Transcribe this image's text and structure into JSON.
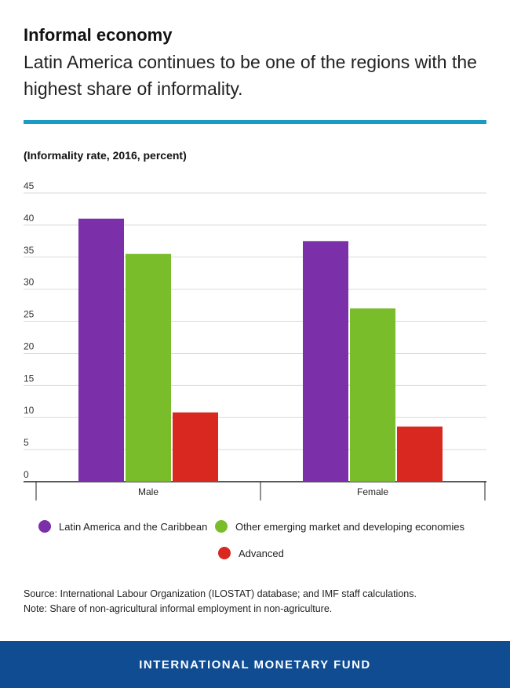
{
  "header": {
    "title": "Informal economy",
    "subtitle": "Latin America continues to be one of the regions with the highest share of informality."
  },
  "colors": {
    "rule": "#1a9bc6",
    "footer_bg": "#0f4c92"
  },
  "chart_data": {
    "type": "bar",
    "units_label": "(Informality rate, 2016, percent)",
    "categories": [
      "Male",
      "Female"
    ],
    "ylim": [
      0,
      45
    ],
    "yticks": [
      "0",
      "5",
      "10",
      "15",
      "20",
      "25",
      "30",
      "35",
      "40",
      "45"
    ],
    "grid": true,
    "legend_position": "bottom",
    "series": [
      {
        "name": "Latin America and the Caribbean",
        "color": "#7b2fa8",
        "values": [
          41,
          37.5
        ]
      },
      {
        "name": "Other emerging market and developing economies",
        "color": "#7abd2a",
        "values": [
          35.5,
          27
        ]
      },
      {
        "name": "Advanced",
        "color": "#d8281f",
        "values": [
          10.8,
          8.6
        ]
      }
    ]
  },
  "notes": {
    "source": "Source: International Labour Organization (ILOSTAT) database; and IMF staff calculations.",
    "note": "Note: Share of non-agricultural informal employment in non-agriculture."
  },
  "footer": {
    "label": "INTERNATIONAL MONETARY FUND"
  }
}
